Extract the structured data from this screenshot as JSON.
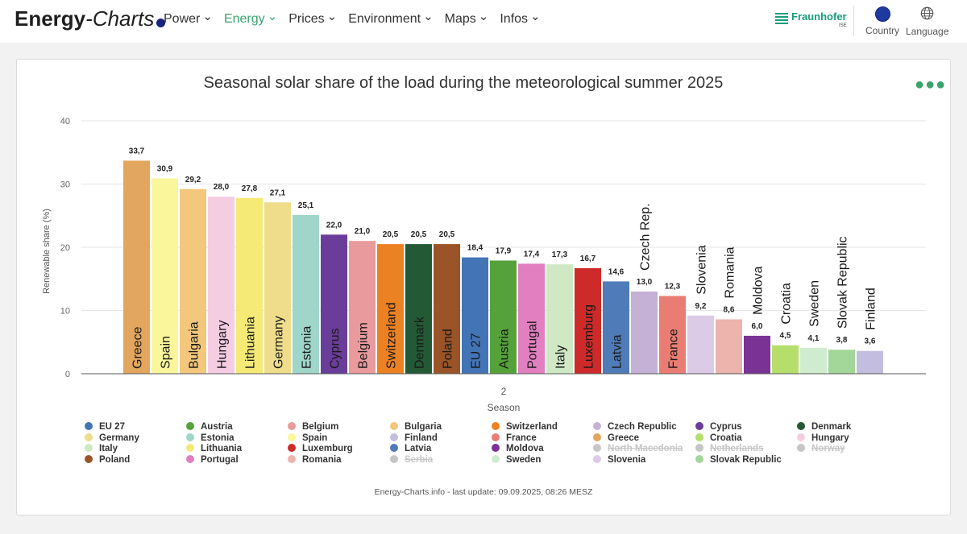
{
  "header": {
    "logo_bold": "Energy",
    "logo_italic": "-Charts",
    "nav": [
      {
        "label": "Power",
        "active": false
      },
      {
        "label": "Energy",
        "active": true
      },
      {
        "label": "Prices",
        "active": false
      },
      {
        "label": "Environment",
        "active": false
      },
      {
        "label": "Maps",
        "active": false
      },
      {
        "label": "Infos",
        "active": false
      }
    ],
    "partner": "Fraunhofer",
    "partner_sub": "ISE",
    "country_label": "Country",
    "language_label": "Language"
  },
  "footer_note": "Energy-Charts.info - last update: 09.09.2025, 08:26 MESZ",
  "chart_data": {
    "type": "bar",
    "title": "Seasonal solar share of the load during the meteorological summer 2025",
    "ylabel": "Renewable share (%)",
    "xlabel": "Season",
    "x_tick": "2",
    "ylim": [
      0,
      40
    ],
    "yticks": [
      0,
      10,
      20,
      30,
      40
    ],
    "grid": true,
    "legend_position": "bottom",
    "bars": [
      {
        "name": "Greece",
        "value": 33.7,
        "label": "33,7",
        "color": "#e3a65f"
      },
      {
        "name": "Spain",
        "value": 30.9,
        "label": "30,9",
        "color": "#faf69c"
      },
      {
        "name": "Bulgaria",
        "value": 29.2,
        "label": "29,2",
        "color": "#f3c77c"
      },
      {
        "name": "Hungary",
        "value": 28.0,
        "label": "28,0",
        "color": "#f5cde3"
      },
      {
        "name": "Lithuania",
        "value": 27.8,
        "label": "27,8",
        "color": "#f5ea76"
      },
      {
        "name": "Germany",
        "value": 27.1,
        "label": "27,1",
        "color": "#efdd8b"
      },
      {
        "name": "Estonia",
        "value": 25.1,
        "label": "25,1",
        "color": "#9fd6c9"
      },
      {
        "name": "Cyprus",
        "value": 22.0,
        "label": "22,0",
        "color": "#6a3d9a"
      },
      {
        "name": "Belgium",
        "value": 21.0,
        "label": "21,0",
        "color": "#e99a9c"
      },
      {
        "name": "Switzerland",
        "value": 20.5,
        "label": "20,5",
        "color": "#ec8124"
      },
      {
        "name": "Denmark",
        "value": 20.5,
        "label": "20,5",
        "color": "#235a35"
      },
      {
        "name": "Poland",
        "value": 20.5,
        "label": "20,5",
        "color": "#9b5427"
      },
      {
        "name": "EU 27",
        "value": 18.4,
        "label": "18,4",
        "color": "#4274b6"
      },
      {
        "name": "Austria",
        "value": 17.9,
        "label": "17,9",
        "color": "#55a23a"
      },
      {
        "name": "Portugal",
        "value": 17.4,
        "label": "17,4",
        "color": "#e17fc1"
      },
      {
        "name": "Italy",
        "value": 17.3,
        "label": "17,3",
        "color": "#cfe9c5"
      },
      {
        "name": "Luxemburg",
        "value": 16.7,
        "label": "16,7",
        "color": "#cf2a2a"
      },
      {
        "name": "Latvia",
        "value": 14.6,
        "label": "14,6",
        "color": "#4f7bb8"
      },
      {
        "name": "Czech Rep.",
        "value": 13.0,
        "label": "13,0",
        "color": "#c6b1d6"
      },
      {
        "name": "France",
        "value": 12.3,
        "label": "12,3",
        "color": "#ea7d73"
      },
      {
        "name": "Slovenia",
        "value": 9.2,
        "label": "9,2",
        "color": "#dccbe6"
      },
      {
        "name": "Romania",
        "value": 8.6,
        "label": "8,6",
        "color": "#edb3ad"
      },
      {
        "name": "Moldova",
        "value": 6.0,
        "label": "6,0",
        "color": "#7a3295"
      },
      {
        "name": "Croatia",
        "value": 4.5,
        "label": "4,5",
        "color": "#b5df6a"
      },
      {
        "name": "Sweden",
        "value": 4.1,
        "label": "4,1",
        "color": "#d0ecd0"
      },
      {
        "name": "Slovak Republic",
        "value": 3.8,
        "label": "3,8",
        "color": "#a3d699"
      },
      {
        "name": "Finland",
        "value": 3.6,
        "label": "3,6",
        "color": "#c3bee0"
      }
    ],
    "legend": [
      {
        "name": "EU 27",
        "color": "#4274b6",
        "hidden": false
      },
      {
        "name": "Austria",
        "color": "#55a23a",
        "hidden": false
      },
      {
        "name": "Belgium",
        "color": "#e99a9c",
        "hidden": false
      },
      {
        "name": "Bulgaria",
        "color": "#f3c77c",
        "hidden": false
      },
      {
        "name": "Switzerland",
        "color": "#ec8124",
        "hidden": false
      },
      {
        "name": "Czech Republic",
        "color": "#c6b1d6",
        "hidden": false
      },
      {
        "name": "Cyprus",
        "color": "#6a3d9a",
        "hidden": false
      },
      {
        "name": "Denmark",
        "color": "#235a35",
        "hidden": false
      },
      {
        "name": "Germany",
        "color": "#efdd8b",
        "hidden": false
      },
      {
        "name": "Estonia",
        "color": "#9fd6c9",
        "hidden": false
      },
      {
        "name": "Spain",
        "color": "#faf69c",
        "hidden": false
      },
      {
        "name": "Finland",
        "color": "#c3bee0",
        "hidden": false
      },
      {
        "name": "France",
        "color": "#ea7d73",
        "hidden": false
      },
      {
        "name": "Greece",
        "color": "#e3a65f",
        "hidden": false
      },
      {
        "name": "Croatia",
        "color": "#b5df6a",
        "hidden": false
      },
      {
        "name": "Hungary",
        "color": "#f5cde3",
        "hidden": false
      },
      {
        "name": "Italy",
        "color": "#cfe9c5",
        "hidden": false
      },
      {
        "name": "Lithuania",
        "color": "#f5ea76",
        "hidden": false
      },
      {
        "name": "Luxemburg",
        "color": "#cf2a2a",
        "hidden": false
      },
      {
        "name": "Latvia",
        "color": "#4f7bb8",
        "hidden": false
      },
      {
        "name": "Moldova",
        "color": "#7a3295",
        "hidden": false
      },
      {
        "name": "North Macedonia",
        "color": "#c6c6c6",
        "hidden": true
      },
      {
        "name": "Netherlands",
        "color": "#c6c6c6",
        "hidden": true
      },
      {
        "name": "Norway",
        "color": "#c6c6c6",
        "hidden": true
      },
      {
        "name": "Poland",
        "color": "#9b5427",
        "hidden": false
      },
      {
        "name": "Portugal",
        "color": "#e17fc1",
        "hidden": false
      },
      {
        "name": "Romania",
        "color": "#edb3ad",
        "hidden": false
      },
      {
        "name": "Serbia",
        "color": "#c6c6c6",
        "hidden": true
      },
      {
        "name": "Sweden",
        "color": "#d0ecd0",
        "hidden": false
      },
      {
        "name": "Slovenia",
        "color": "#dccbe6",
        "hidden": false
      },
      {
        "name": "Slovak Republic",
        "color": "#a3d699",
        "hidden": false
      }
    ]
  }
}
